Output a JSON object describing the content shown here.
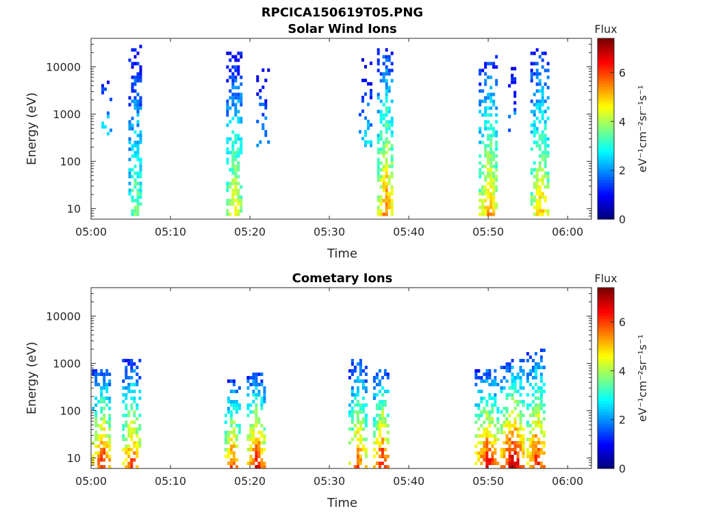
{
  "figure_title": "RPCICA150619T05.PNG",
  "chart_data": [
    {
      "type": "heatmap",
      "title": "Solar Wind Ions",
      "xlabel": "Time",
      "ylabel": "Energy (eV)",
      "y_scale": "log",
      "ylim": [
        6,
        40000
      ],
      "xlim": [
        "05:00",
        "06:03"
      ],
      "xticks": [
        "05:00",
        "05:10",
        "05:20",
        "05:30",
        "05:40",
        "05:50",
        "06:00"
      ],
      "yticks": [
        {
          "value": 10,
          "label": "10"
        },
        {
          "value": 100,
          "label": "100"
        },
        {
          "value": 1000,
          "label": "1000"
        },
        {
          "value": 10000,
          "label": "10000"
        }
      ],
      "colorbar": {
        "title": "Flux",
        "label": "eV⁻¹cm⁻²sr⁻¹s⁻¹",
        "range": [
          0,
          7.4
        ],
        "ticks": [
          "0",
          "2",
          "4",
          "6"
        ],
        "colormap": "jet"
      },
      "bursts": [
        {
          "time": "05:01.5",
          "halfwidth_min": 0.9,
          "emin": 300,
          "emax": 10000,
          "peak_flux": 3.0,
          "density": 0.25
        },
        {
          "time": "05:05.5",
          "halfwidth_min": 0.8,
          "emin": 7,
          "emax": 25000,
          "peak_flux": 4.0,
          "density": 0.8
        },
        {
          "time": "05:18.0",
          "halfwidth_min": 1.0,
          "emin": 7,
          "emax": 18000,
          "peak_flux": 4.8,
          "density": 0.8
        },
        {
          "time": "05:21.5",
          "halfwidth_min": 0.7,
          "emin": 200,
          "emax": 9000,
          "peak_flux": 2.5,
          "density": 0.35
        },
        {
          "time": "05:34.5",
          "halfwidth_min": 0.8,
          "emin": 200,
          "emax": 13000,
          "peak_flux": 2.8,
          "density": 0.3
        },
        {
          "time": "05:37.0",
          "halfwidth_min": 1.0,
          "emin": 7,
          "emax": 22000,
          "peak_flux": 5.8,
          "density": 0.85
        },
        {
          "time": "05:50.0",
          "halfwidth_min": 1.2,
          "emin": 7,
          "emax": 16000,
          "peak_flux": 5.5,
          "density": 0.8
        },
        {
          "time": "05:53.0",
          "halfwidth_min": 0.5,
          "emin": 300,
          "emax": 9000,
          "peak_flux": 2.5,
          "density": 0.3
        },
        {
          "time": "05:56.5",
          "halfwidth_min": 1.2,
          "emin": 7,
          "emax": 24000,
          "peak_flux": 5.2,
          "density": 0.8
        }
      ]
    },
    {
      "type": "heatmap",
      "title": "Cometary Ions",
      "xlabel": "Time",
      "ylabel": "Energy (eV)",
      "y_scale": "log",
      "ylim": [
        6,
        40000
      ],
      "xlim": [
        "05:00",
        "06:03"
      ],
      "xticks": [
        "05:00",
        "05:10",
        "05:20",
        "05:30",
        "05:40",
        "05:50",
        "06:00"
      ],
      "yticks": [
        {
          "value": 10,
          "label": "10"
        },
        {
          "value": 100,
          "label": "100"
        },
        {
          "value": 1000,
          "label": "1000"
        },
        {
          "value": 10000,
          "label": "10000"
        }
      ],
      "colorbar": {
        "title": "Flux",
        "label": "eV⁻¹cm⁻²sr⁻¹s⁻¹",
        "range": [
          0,
          7.4
        ],
        "ticks": [
          "0",
          "2",
          "4",
          "6"
        ],
        "colormap": "jet"
      },
      "bursts": [
        {
          "time": "05:01.3",
          "halfwidth_min": 1.2,
          "emin": 6,
          "emax": 700,
          "peak_flux": 6.6,
          "density": 0.75
        },
        {
          "time": "05:05.0",
          "halfwidth_min": 1.1,
          "emin": 6,
          "emax": 1100,
          "peak_flux": 6.2,
          "density": 0.75
        },
        {
          "time": "05:17.7",
          "halfwidth_min": 0.9,
          "emin": 6,
          "emax": 400,
          "peak_flux": 6.3,
          "density": 0.75
        },
        {
          "time": "05:20.7",
          "halfwidth_min": 1.1,
          "emin": 6,
          "emax": 600,
          "peak_flux": 6.8,
          "density": 0.75
        },
        {
          "time": "05:33.5",
          "halfwidth_min": 1.1,
          "emin": 6,
          "emax": 1200,
          "peak_flux": 6.0,
          "density": 0.7
        },
        {
          "time": "05:36.5",
          "halfwidth_min": 1.0,
          "emin": 6,
          "emax": 700,
          "peak_flux": 6.8,
          "density": 0.75
        },
        {
          "time": "05:49.8",
          "halfwidth_min": 1.5,
          "emin": 6,
          "emax": 700,
          "peak_flux": 6.8,
          "density": 0.8
        },
        {
          "time": "05:53.0",
          "halfwidth_min": 1.5,
          "emin": 6,
          "emax": 1100,
          "peak_flux": 7.3,
          "density": 0.8
        },
        {
          "time": "05:56.0",
          "halfwidth_min": 1.2,
          "emin": 6,
          "emax": 1800,
          "peak_flux": 6.6,
          "density": 0.75
        }
      ]
    }
  ]
}
